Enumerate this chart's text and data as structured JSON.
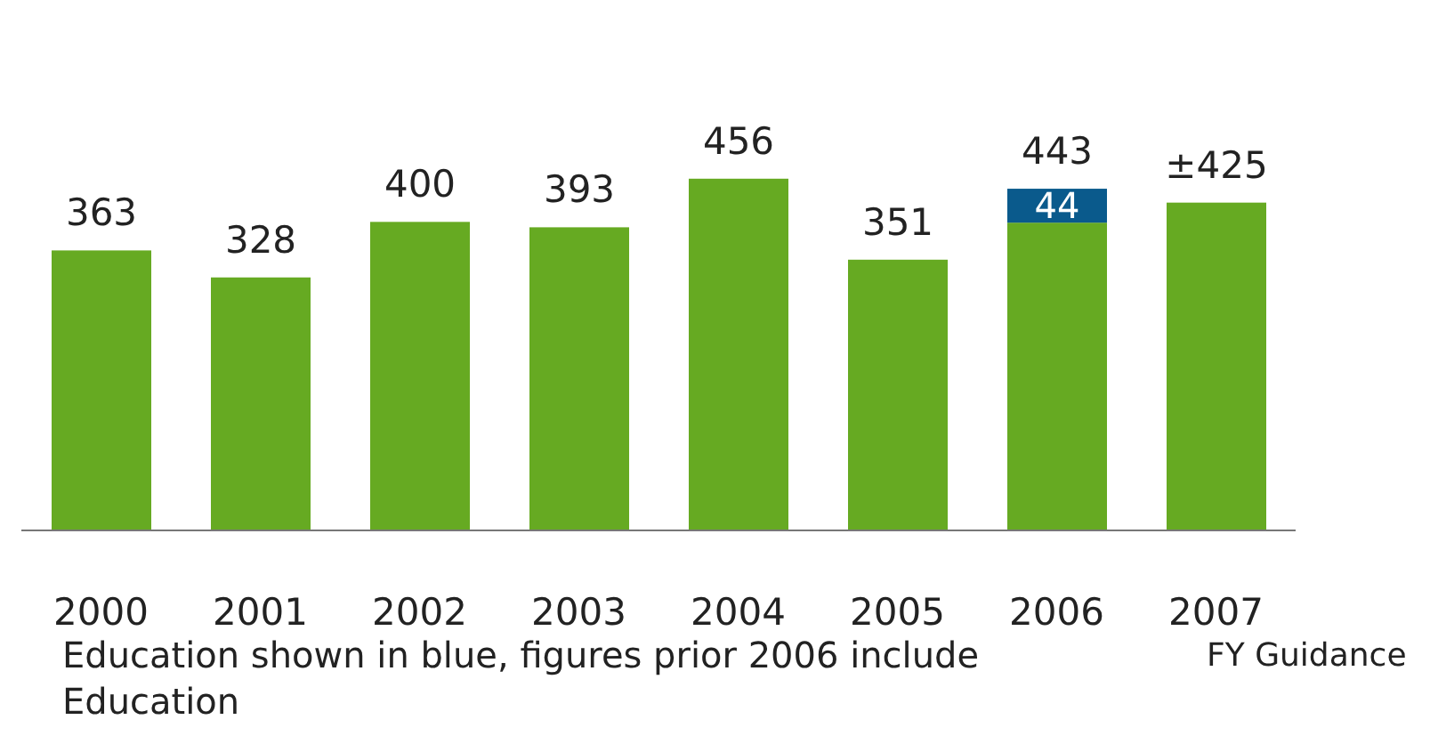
{
  "chart_data": {
    "type": "bar",
    "stacked": true,
    "categories": [
      "2000",
      "2001",
      "2002",
      "2003",
      "2004",
      "2005",
      "2006",
      "2007"
    ],
    "series": [
      {
        "color": "#66aa22",
        "values": [
          363,
          328,
          400,
          393,
          456,
          351,
          399,
          425
        ]
      },
      {
        "color": "#0a5a8c",
        "values": [
          null,
          null,
          null,
          null,
          null,
          null,
          44,
          null
        ],
        "value_labels": [
          null,
          null,
          null,
          null,
          null,
          null,
          "44",
          null
        ]
      }
    ],
    "totals": [
      "363",
      "328",
      "400",
      "393",
      "456",
      "351",
      "443",
      "±425"
    ],
    "annotations": [
      "Education shown in blue, figures prior 2006 include Education",
      "FY Guidance"
    ]
  }
}
